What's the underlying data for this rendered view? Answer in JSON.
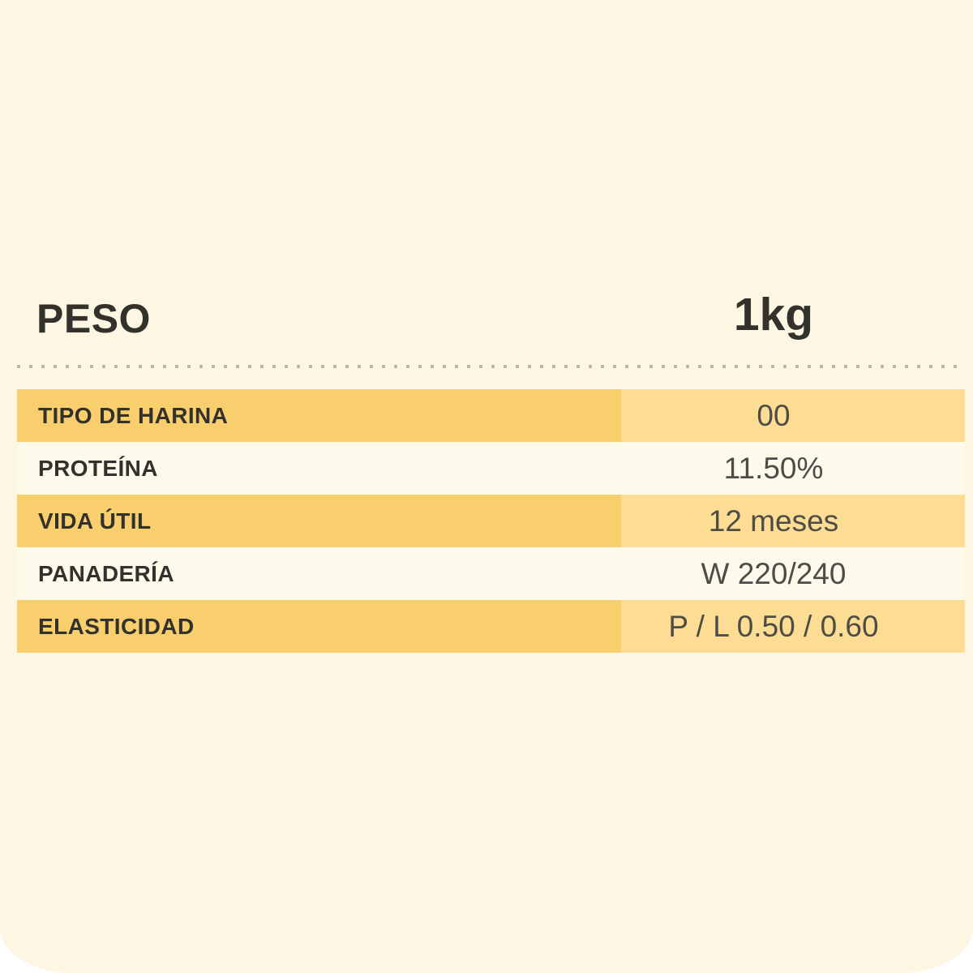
{
  "header": {
    "label": "PESO",
    "value": "1kg"
  },
  "table": {
    "rows": [
      {
        "label": "TIPO DE HARINA",
        "value": "00",
        "highlighted": true
      },
      {
        "label": "PROTEÍNA",
        "value": "11.50%",
        "highlighted": false
      },
      {
        "label": "VIDA ÚTIL",
        "value": "12 meses",
        "highlighted": true
      },
      {
        "label": "PANADERÍA",
        "value": "W 220/240",
        "highlighted": false
      },
      {
        "label": "ELASTICIDAD",
        "value": "P / L 0.50 / 0.60",
        "highlighted": true
      }
    ]
  },
  "colors": {
    "page_bg": "#FDF6E2",
    "outside_bg": "#FFFFFF",
    "highlight_label_bg": "#F9CE6D",
    "highlight_value_bg": "#FCDD93",
    "plain_row_bg": "#FEFAEB",
    "label_text": "#32312C",
    "value_text": "#4D4C46",
    "header_text": "#32312C",
    "divider_dot": "#B7B7B1"
  }
}
